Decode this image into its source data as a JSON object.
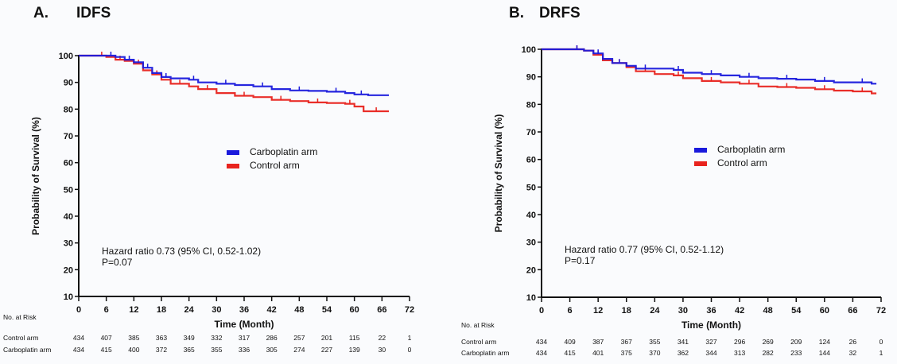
{
  "chart_data": [
    {
      "type": "line",
      "panel_label": "A.",
      "title": "IDFS",
      "xlabel": "Time (Month)",
      "ylabel": "Probability of Survival (%)",
      "xlim": [
        0,
        72
      ],
      "ylim": [
        10,
        100
      ],
      "xticks": [
        0,
        6,
        12,
        18,
        24,
        30,
        36,
        42,
        48,
        54,
        60,
        66,
        72
      ],
      "yticks": [
        10,
        20,
        30,
        40,
        50,
        60,
        70,
        80,
        90,
        100
      ],
      "grid": false,
      "legend_position": "center-right",
      "series": [
        {
          "name": "Carboplatin arm",
          "color": "#1a1adc",
          "x": [
            0,
            6,
            8,
            10,
            12,
            14,
            16,
            18,
            20,
            24,
            26,
            30,
            34,
            38,
            42,
            46,
            50,
            54,
            58,
            60,
            63,
            67.5
          ],
          "y": [
            100,
            100,
            99.5,
            98.5,
            97.5,
            95.5,
            93.5,
            92,
            91.5,
            91,
            90,
            89.5,
            89,
            88.5,
            87.5,
            87,
            86.8,
            86.5,
            86,
            85.5,
            85.2,
            85.2
          ]
        },
        {
          "name": "Control arm",
          "color": "#e8231e",
          "x": [
            0,
            4,
            6,
            8,
            10,
            12,
            14,
            16,
            18,
            20,
            24,
            26,
            30,
            34,
            38,
            42,
            46,
            50,
            54,
            58,
            60,
            62,
            67.5
          ],
          "y": [
            100,
            100,
            99.5,
            98.5,
            98,
            97,
            94.5,
            93,
            91,
            89.5,
            88.5,
            87.5,
            86,
            85,
            84.5,
            83.5,
            83,
            82.5,
            82.3,
            82,
            81,
            79.2,
            79.2
          ]
        }
      ],
      "annotations": [
        "Hazard ratio 0.73 (95% CI, 0.52-1.02)",
        "P=0.07"
      ],
      "risk_table": {
        "header": "No. at Risk",
        "rows": [
          {
            "label": "Control arm",
            "values": [
              434,
              407,
              385,
              363,
              349,
              332,
              317,
              286,
              257,
              201,
              115,
              22,
              1
            ]
          },
          {
            "label": "Carboplatin arm",
            "values": [
              434,
              415,
              400,
              372,
              365,
              355,
              336,
              305,
              274,
              227,
              139,
              30,
              0
            ]
          }
        ]
      }
    },
    {
      "type": "line",
      "panel_label": "B.",
      "title": "DRFS",
      "xlabel": "Time (Month)",
      "ylabel": "Probability of Survival (%)",
      "xlim": [
        0,
        72
      ],
      "ylim": [
        10,
        100
      ],
      "xticks": [
        0,
        6,
        12,
        18,
        24,
        30,
        36,
        42,
        48,
        54,
        60,
        66,
        72
      ],
      "yticks": [
        10,
        20,
        30,
        40,
        50,
        60,
        70,
        80,
        90,
        100
      ],
      "grid": false,
      "legend_position": "center-right",
      "series": [
        {
          "name": "Carboplatin arm",
          "color": "#1a1adc",
          "x": [
            0,
            6,
            9,
            11,
            13,
            15,
            18,
            20,
            24,
            28,
            30,
            34,
            38,
            42,
            46,
            50,
            54,
            58,
            62,
            66,
            70,
            71
          ],
          "y": [
            100,
            100,
            99.5,
            98.5,
            96.5,
            95,
            94,
            93,
            93,
            92.5,
            91.5,
            91,
            90.5,
            90,
            89.5,
            89.3,
            89,
            88.5,
            88,
            88,
            87.5,
            87.5
          ]
        },
        {
          "name": "Control arm",
          "color": "#e8231e",
          "x": [
            0,
            6,
            9,
            11,
            13,
            15,
            18,
            20,
            24,
            28,
            30,
            34,
            38,
            42,
            46,
            50,
            54,
            58,
            62,
            66,
            70,
            71
          ],
          "y": [
            100,
            100,
            99.5,
            98,
            96,
            95,
            93.5,
            92,
            91,
            90.5,
            89.5,
            88.5,
            88,
            87.5,
            86.5,
            86.3,
            86,
            85.5,
            85,
            84.7,
            84,
            84
          ]
        }
      ],
      "annotations": [
        "Hazard ratio 0.77 (95% CI, 0.52-1.12)",
        "P=0.17"
      ],
      "risk_table": {
        "header": "No. at Risk",
        "rows": [
          {
            "label": "Control arm",
            "values": [
              434,
              409,
              387,
              367,
              355,
              341,
              327,
              296,
              269,
              209,
              124,
              26,
              0
            ]
          },
          {
            "label": "Carboplatin arm",
            "values": [
              434,
              415,
              401,
              375,
              370,
              362,
              344,
              313,
              282,
              233,
              144,
              32,
              1
            ]
          }
        ]
      }
    }
  ]
}
